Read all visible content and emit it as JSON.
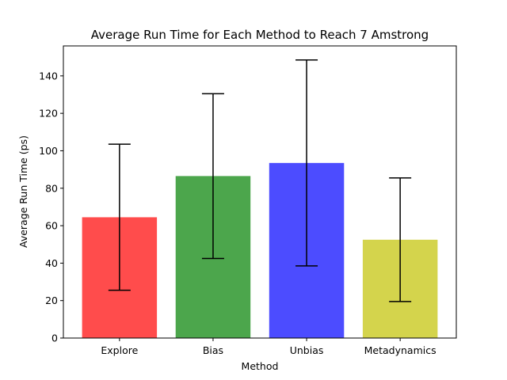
{
  "chart_data": {
    "type": "bar",
    "title": "Average Run Time for Each Method to Reach 7 Amstrong",
    "xlabel": "Method",
    "ylabel": "Average Run Time (ps)",
    "categories": [
      "Explore",
      "Bias",
      "Unbias",
      "Metadynamics"
    ],
    "values": [
      64.5,
      86.5,
      93.5,
      52.5
    ],
    "errors": [
      39,
      44,
      55,
      33
    ],
    "colors": [
      "#ff4c4c",
      "#4ca64c",
      "#4c4cff",
      "#d4d44c"
    ],
    "ylim": [
      0,
      156
    ],
    "yticks": [
      0,
      20,
      40,
      60,
      80,
      100,
      120,
      140
    ],
    "grid": false,
    "legend": "none"
  }
}
